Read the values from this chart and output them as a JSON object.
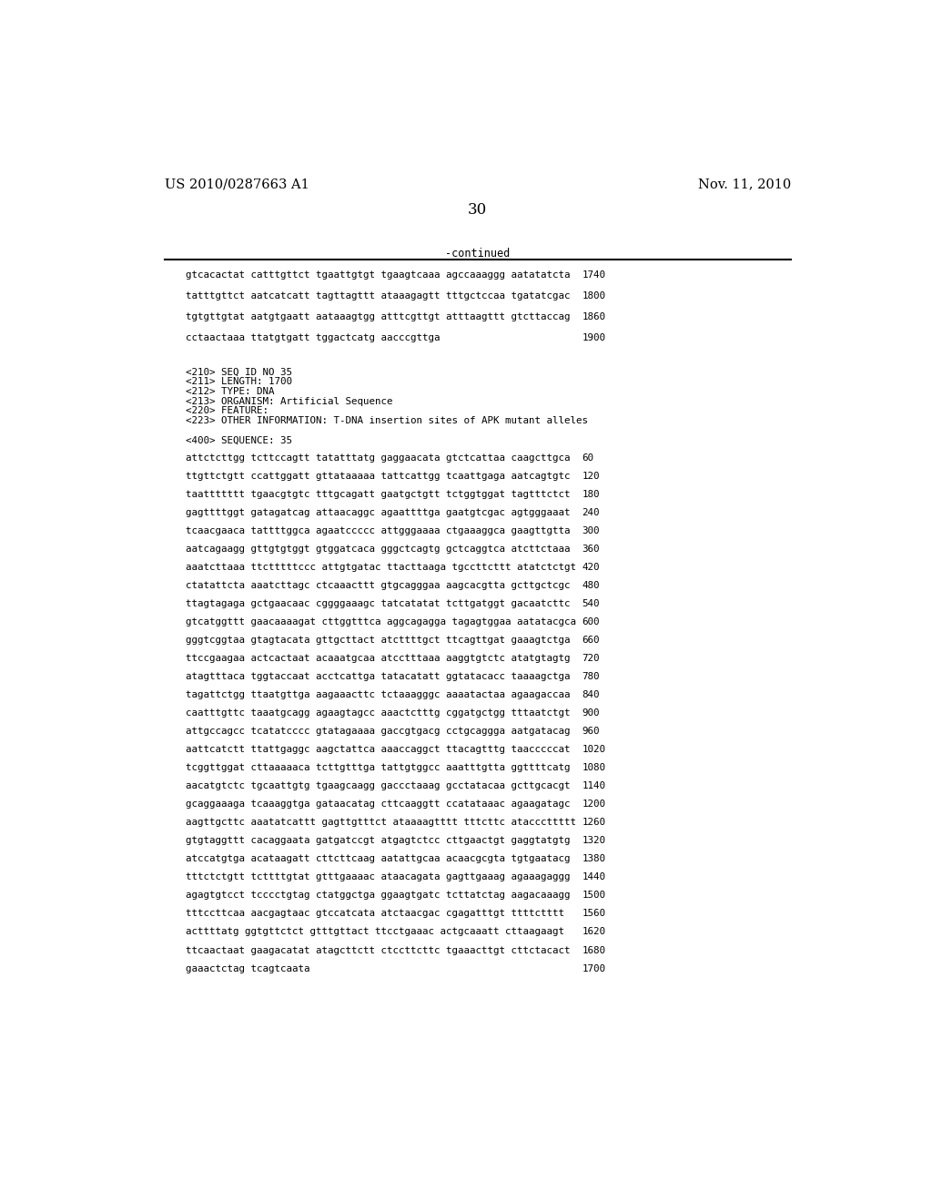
{
  "header_left": "US 2010/0287663 A1",
  "header_right": "Nov. 11, 2010",
  "page_number": "30",
  "continued_label": "-continued",
  "background_color": "#ffffff",
  "text_color": "#000000",
  "sequence_data_top": [
    [
      "gtcacactat catttgttct tgaattgtgt tgaagtcaaa agccaaaggg aatatatcta",
      "1740"
    ],
    [
      "tatttgttct aatcatcatt tagttagttt ataaagagtt tttgctccaa tgatatcgac",
      "1800"
    ],
    [
      "tgtgttgtat aatgtgaatt aataaagtgg atttcgttgt atttaagttt gtcttaccag",
      "1860"
    ],
    [
      "cctaactaaa ttatgtgatt tggactcatg aacccgttga",
      "1900"
    ]
  ],
  "seq_info": [
    "<210> SEQ ID NO 35",
    "<211> LENGTH: 1700",
    "<212> TYPE: DNA",
    "<213> ORGANISM: Artificial Sequence",
    "<220> FEATURE:",
    "<223> OTHER INFORMATION: T-DNA insertion sites of APK mutant alleles"
  ],
  "seq_label": "<400> SEQUENCE: 35",
  "sequence_data_main": [
    [
      "attctcttgg tcttccagtt tatatttatg gaggaacata gtctcattaa caagcttgca",
      "60"
    ],
    [
      "ttgttctgtt ccattggatt gttataaaaa tattcattgg tcaattgaga aatcagtgtc",
      "120"
    ],
    [
      "taattttttt tgaacgtgtc tttgcagatt gaatgctgtt tctggtggat tagtttctct",
      "180"
    ],
    [
      "gagttttggt gatagatcag attaacaggc agaattttga gaatgtcgac agtgggaaat",
      "240"
    ],
    [
      "tcaacgaaca tattttggca agaatccccc attgggaaaa ctgaaaggca gaagttgtta",
      "300"
    ],
    [
      "aatcagaagg gttgtgtggt gtggatcaca gggctcagtg gctcaggtca atcttctaaa",
      "360"
    ],
    [
      "aaatcttaaa ttctttttccc attgtgatac ttacttaaga tgccttcttt atatctctgt",
      "420"
    ],
    [
      "ctatattcta aaatcttagc ctcaaacttt gtgcagggaa aagcacgtta gcttgctcgc",
      "480"
    ],
    [
      "ttagtagaga gctgaacaac cggggaaagc tatcatatat tcttgatggt gacaatcttc",
      "540"
    ],
    [
      "gtcatggttt gaacaaaagat cttggtttca aggcagagga tagagtggaa aatatacgca",
      "600"
    ],
    [
      "gggtcggtaa gtagtacata gttgcttact atcttttgct ttcagttgat gaaagtctga",
      "660"
    ],
    [
      "ttccgaagaa actcactaat acaaatgcaa atcctttaaa aaggtgtctc atatgtagtg",
      "720"
    ],
    [
      "atagtttaca tggtaccaat acctcattga tatacatatt ggtatacacc taaaagctga",
      "780"
    ],
    [
      "tagattctgg ttaatgttga aagaaacttc tctaaagggc aaaatactaa agaagaccaa",
      "840"
    ],
    [
      "caatttgttc taaatgcagg agaagtagcc aaactctttg cggatgctgg tttaatctgt",
      "900"
    ],
    [
      "attgccagcc tcatatcccc gtatagaaaa gaccgtgacg cctgcaggga aatgatacag",
      "960"
    ],
    [
      "aattcatctt ttattgaggc aagctattca aaaccaggct ttacagtttg taacccccat",
      "1020"
    ],
    [
      "tcggttggat cttaaaaaca tcttgtttga tattgtggcc aaatttgtta ggttttcatg",
      "1080"
    ],
    [
      "aacatgtctc tgcaattgtg tgaagcaagg gaccctaaag gcctatacaa gcttgcacgt",
      "1140"
    ],
    [
      "gcaggaaaga tcaaaggtga gataacatag cttcaaggtt ccatataaac agaagatagc",
      "1200"
    ],
    [
      "aagttgcttc aaatatcattt gagttgtttct ataaaagtttt tttcttc atacccttttt",
      "1260"
    ],
    [
      "gtgtaggttt cacaggaata gatgatccgt atgagtctcc cttgaactgt gaggtatgtg",
      "1320"
    ],
    [
      "atccatgtga acataagatt cttcttcaag aatattgcaa acaacgcgta tgtgaatacg",
      "1380"
    ],
    [
      "tttctctgtt tcttttgtat gtttgaaaac ataacagata gagttgaaag agaaagaggg",
      "1440"
    ],
    [
      "agagtgtcct tcccctgtag ctatggctga ggaagtgatc tcttatctag aagacaaagg",
      "1500"
    ],
    [
      "tttccttcaa aacgagtaac gtccatcata atctaacgac cgagatttgt ttttctttt",
      "1560"
    ],
    [
      "acttttatg ggtgttctct gtttgttact ttcctgaaac actgcaaatt cttaagaagt",
      "1620"
    ],
    [
      "ttcaactaat gaagacatat atagcttctt ctccttcttc tgaaacttgt cttctacact",
      "1680"
    ],
    [
      "gaaactctag tcagtcaata",
      "1700"
    ]
  ]
}
